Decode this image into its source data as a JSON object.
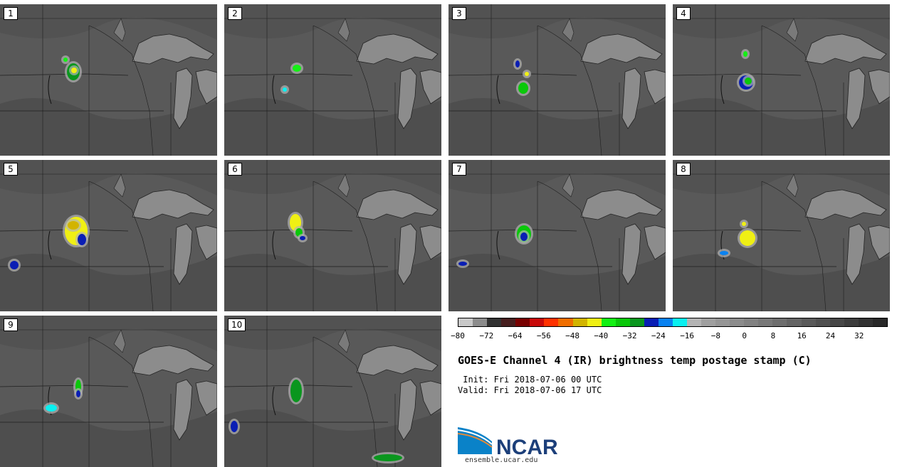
{
  "panels": [
    {
      "label": "1"
    },
    {
      "label": "2"
    },
    {
      "label": "3"
    },
    {
      "label": "4"
    },
    {
      "label": "5"
    },
    {
      "label": "6"
    },
    {
      "label": "7"
    },
    {
      "label": "8"
    },
    {
      "label": "9"
    },
    {
      "label": "10"
    }
  ],
  "colorbar": {
    "colors": [
      "#c8c8c8",
      "#8c8c8c",
      "#323232",
      "#461e1e",
      "#780000",
      "#c80a0a",
      "#ff3200",
      "#f06e00",
      "#d2b400",
      "#f0f014",
      "#14f014",
      "#0ac80a",
      "#0a961e",
      "#0a1eb4",
      "#0a82f0",
      "#0af0f0",
      "#b4b4b4",
      "#a0a0a0",
      "#969696",
      "#8c8c8c",
      "#828282",
      "#787878",
      "#6e6e6e",
      "#646464",
      "#5a5a5a",
      "#505050",
      "#464646",
      "#3c3c3c",
      "#323232",
      "#282828"
    ],
    "ticks": [
      "−80",
      "−72",
      "−64",
      "−56",
      "−48",
      "−40",
      "−32",
      "−24",
      "−16",
      "−8",
      "0",
      "8",
      "16",
      "24",
      "32"
    ],
    "min": -80,
    "max": 40
  },
  "title": "GOES-E Channel 4 (IR) brightness temp postage stamp (C)",
  "init": " Init: Fri 2018-07-06 00 UTC",
  "valid": "Valid: Fri 2018-07-06 17 UTC",
  "logo": {
    "text": "NCAR",
    "url": "ensemble.ucar.edu"
  }
}
